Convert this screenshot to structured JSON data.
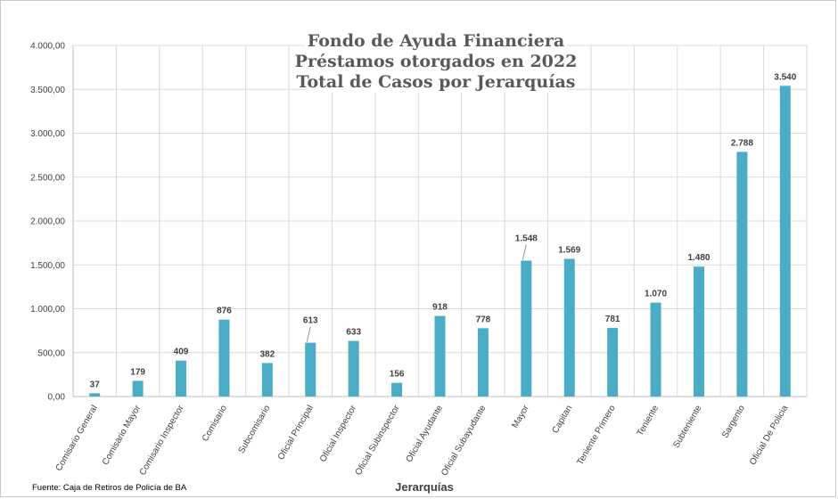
{
  "chart_data": {
    "type": "bar",
    "title": [
      "Fondo de Ayuda Financiera",
      "Préstamos otorgados en 2022",
      "Total de Casos por Jerarquías"
    ],
    "xlabel": "Jerarquías",
    "ylabel": "",
    "ylim": [
      0,
      4000
    ],
    "yticks": [
      "0,00",
      "500,00",
      "1.000,00",
      "1.500,00",
      "2.000,00",
      "2.500,00",
      "3.000,00",
      "3.500,00",
      "4.000,00"
    ],
    "grid": true,
    "legend": "none",
    "bar_color": "#4bacc6",
    "categories": [
      "Comisario General",
      "Comisario Mayor",
      "Comisario Inspector",
      "Comisario",
      "Subcomisario",
      "Oficial Principal",
      "Oficial Inspector",
      "Oficial Subinspector",
      "Oficial Ayudante",
      "Oficial Subayudante",
      "Mayor",
      "Capitan",
      "Teniente Primero",
      "Teniente",
      "Subteniente",
      "Sargento",
      "Oficial De Policia"
    ],
    "values": [
      37,
      179,
      409,
      876,
      382,
      613,
      633,
      156,
      918,
      778,
      1548,
      1569,
      781,
      1070,
      1480,
      2788,
      3540
    ],
    "data_labels": [
      "37",
      "179",
      "409",
      "876",
      "382",
      "613",
      "633",
      "156",
      "918",
      "778",
      "1.548",
      "1.569",
      "781",
      "1.070",
      "1.480",
      "2.788",
      "3.540"
    ]
  },
  "source_note": "Fuente: Caja de Retiros de Policía de BA"
}
